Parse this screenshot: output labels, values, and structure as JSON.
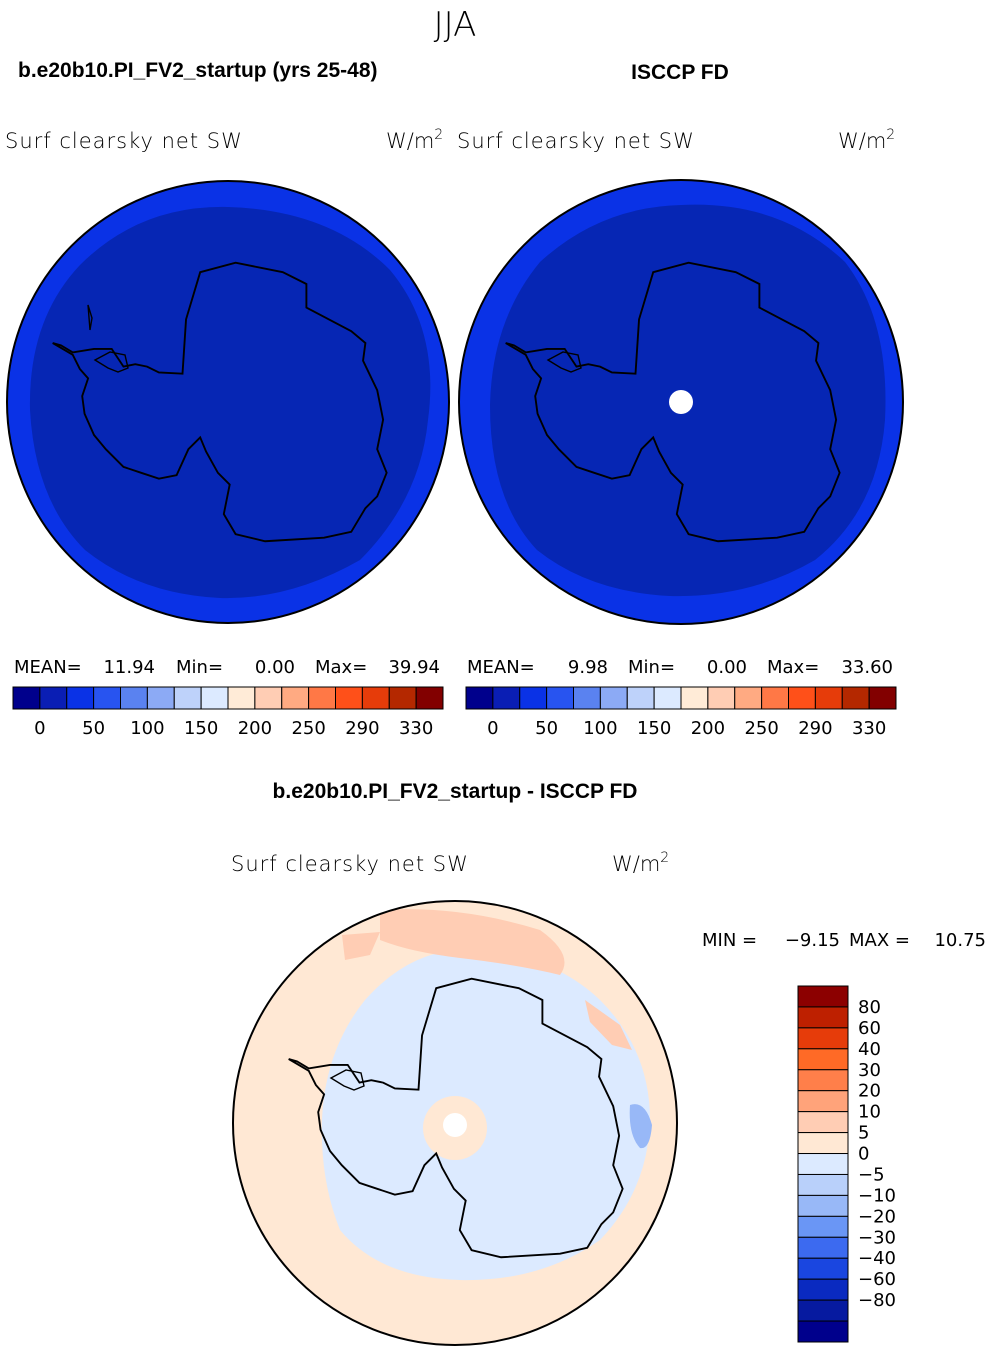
{
  "season": "JJA",
  "panels": [
    {
      "title": "b.e20b10.PI_FV2_startup (yrs 25-48)",
      "variable": "Surf clearsky net SW",
      "units_base": "W/m",
      "units_exp": "2",
      "stats": {
        "mean_label": "MEAN=",
        "mean": "11.94",
        "min_label": "Min=",
        "min": "0.00",
        "max_label": "Max=",
        "max": "39.94"
      },
      "field": {
        "outer_ring_color": "#0a32e6",
        "inner_color": "#0626b4",
        "missing_pole": false
      }
    },
    {
      "title": "ISCCP FD",
      "variable": "Surf clearsky net SW",
      "units_base": "W/m",
      "units_exp": "2",
      "stats": {
        "mean_label": "MEAN=",
        "mean": "9.98",
        "min_label": "Min=",
        "min": "0.00",
        "max_label": "Max=",
        "max": "33.60"
      },
      "field": {
        "outer_ring_color": "#0a32e6",
        "inner_color": "#0626b4",
        "missing_pole": true
      }
    }
  ],
  "colorbar_top": {
    "colors": [
      "#00008c",
      "#0a1eb4",
      "#0a32e6",
      "#2854f0",
      "#5a82f0",
      "#8caaf5",
      "#bed2fa",
      "#dceaff",
      "#ffebd7",
      "#ffcdb4",
      "#ffaa82",
      "#ff7846",
      "#ff5019",
      "#e63c0a",
      "#b42800",
      "#820000"
    ],
    "labels": [
      "0",
      "50",
      "100",
      "150",
      "200",
      "250",
      "290",
      "330"
    ]
  },
  "diff_panel": {
    "title": "b.e20b10.PI_FV2_startup - ISCCP FD",
    "variable": "Surf clearsky net SW",
    "units_base": "W/m",
    "units_exp": "2",
    "minmax": {
      "min_label": "MIN =",
      "min": "−9.15",
      "max_label": "MAX =",
      "max": "10.75"
    },
    "colorbar": {
      "colors_top_to_bottom": [
        "#8c0000",
        "#be2000",
        "#e63c0a",
        "#ff6a26",
        "#ff7f4a",
        "#ffa37a",
        "#ffcdb4",
        "#ffe8d4",
        "#dceaff",
        "#b9d0fa",
        "#98b8f7",
        "#6a96f5",
        "#3c6af0",
        "#1a46e0",
        "#0a2ac0",
        "#061aa0",
        "#00008c"
      ],
      "labels": [
        "80",
        "60",
        "40",
        "30",
        "20",
        "10",
        "5",
        "0",
        "−5",
        "−10",
        "−20",
        "−30",
        "−40",
        "−60",
        "−80"
      ]
    },
    "field": {
      "background_color": "#ffe8d4",
      "negative_color": "#dceaff",
      "positive_patch_color": "#ffcdb4",
      "strong_negative_color": "#98b8f7"
    }
  }
}
